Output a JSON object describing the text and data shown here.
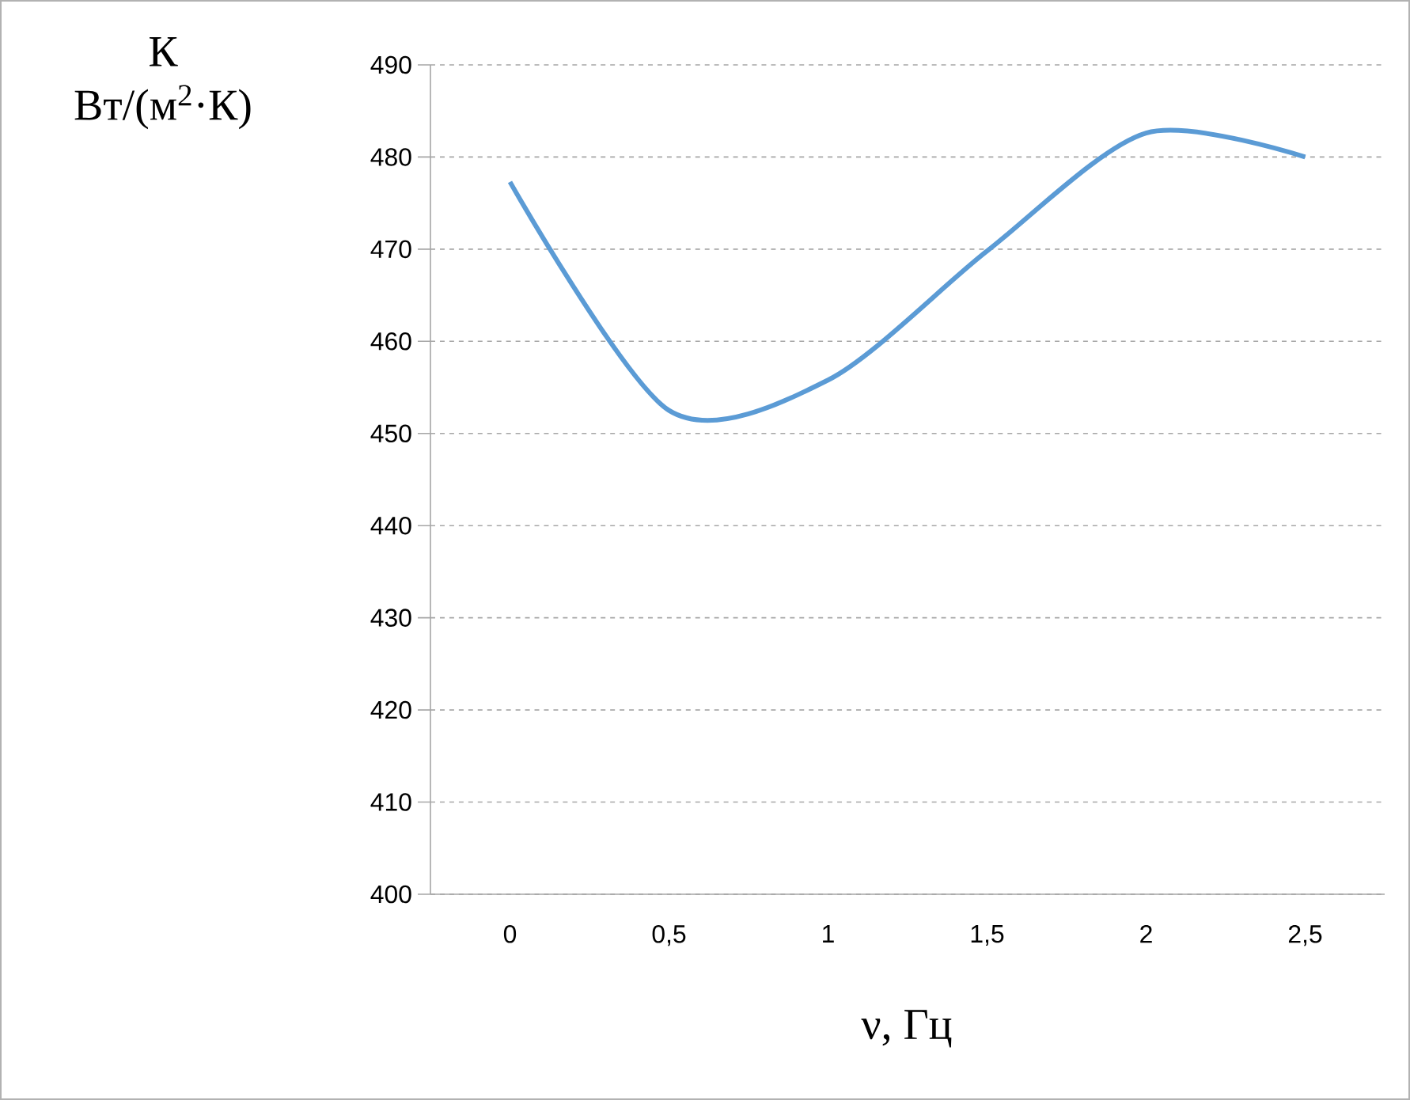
{
  "chart_data": {
    "type": "line",
    "xlabel": "ν, Гц",
    "ylabel": "К Вт/(м$^{2}$·К)",
    "categories": [
      "0",
      "0,5",
      "1",
      "1,5",
      "2",
      "2,5"
    ],
    "series": [
      {
        "color": "#5b9bd5",
        "values": [
          477.3,
          452.5,
          455.8,
          469.8,
          482.6,
          480
        ]
      }
    ],
    "ylim": [
      400,
      490
    ],
    "yticks": [
      400,
      410,
      420,
      430,
      440,
      450,
      460,
      470,
      480,
      490
    ],
    "grid": "y",
    "marker": "none",
    "line_style": "solid"
  }
}
